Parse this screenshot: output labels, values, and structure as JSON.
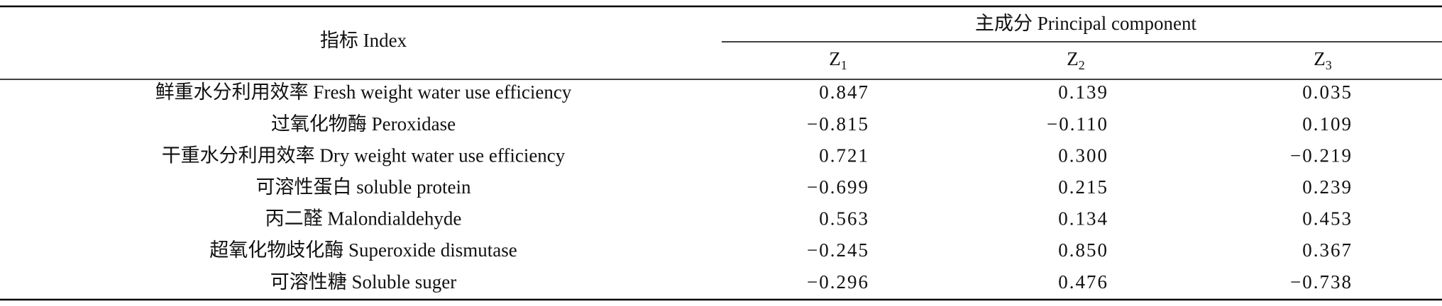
{
  "table": {
    "row_header": "指标 Index",
    "group_header": "主成分 Principal component",
    "columns": [
      {
        "base": "Z",
        "sub": "1"
      },
      {
        "base": "Z",
        "sub": "2"
      },
      {
        "base": "Z",
        "sub": "3"
      }
    ],
    "rows": [
      [
        "鲜重水分利用效率 Fresh weight water use efficiency",
        "0.847",
        "0.139",
        "0.035"
      ],
      [
        "过氧化物酶 Peroxidase",
        "−0.815",
        "−0.110",
        "0.109"
      ],
      [
        "干重水分利用效率 Dry weight water use efficiency",
        "0.721",
        "0.300",
        "−0.219"
      ],
      [
        "可溶性蛋白 soluble protein",
        "−0.699",
        "0.215",
        "0.239"
      ],
      [
        "丙二醛 Malondialdehyde",
        "0.563",
        "0.134",
        "0.453"
      ],
      [
        "超氧化物歧化酶 Superoxide dismutase",
        "−0.245",
        "0.850",
        "0.367"
      ],
      [
        "可溶性糖 Soluble suger",
        "−0.296",
        "0.476",
        "−0.738"
      ]
    ]
  }
}
